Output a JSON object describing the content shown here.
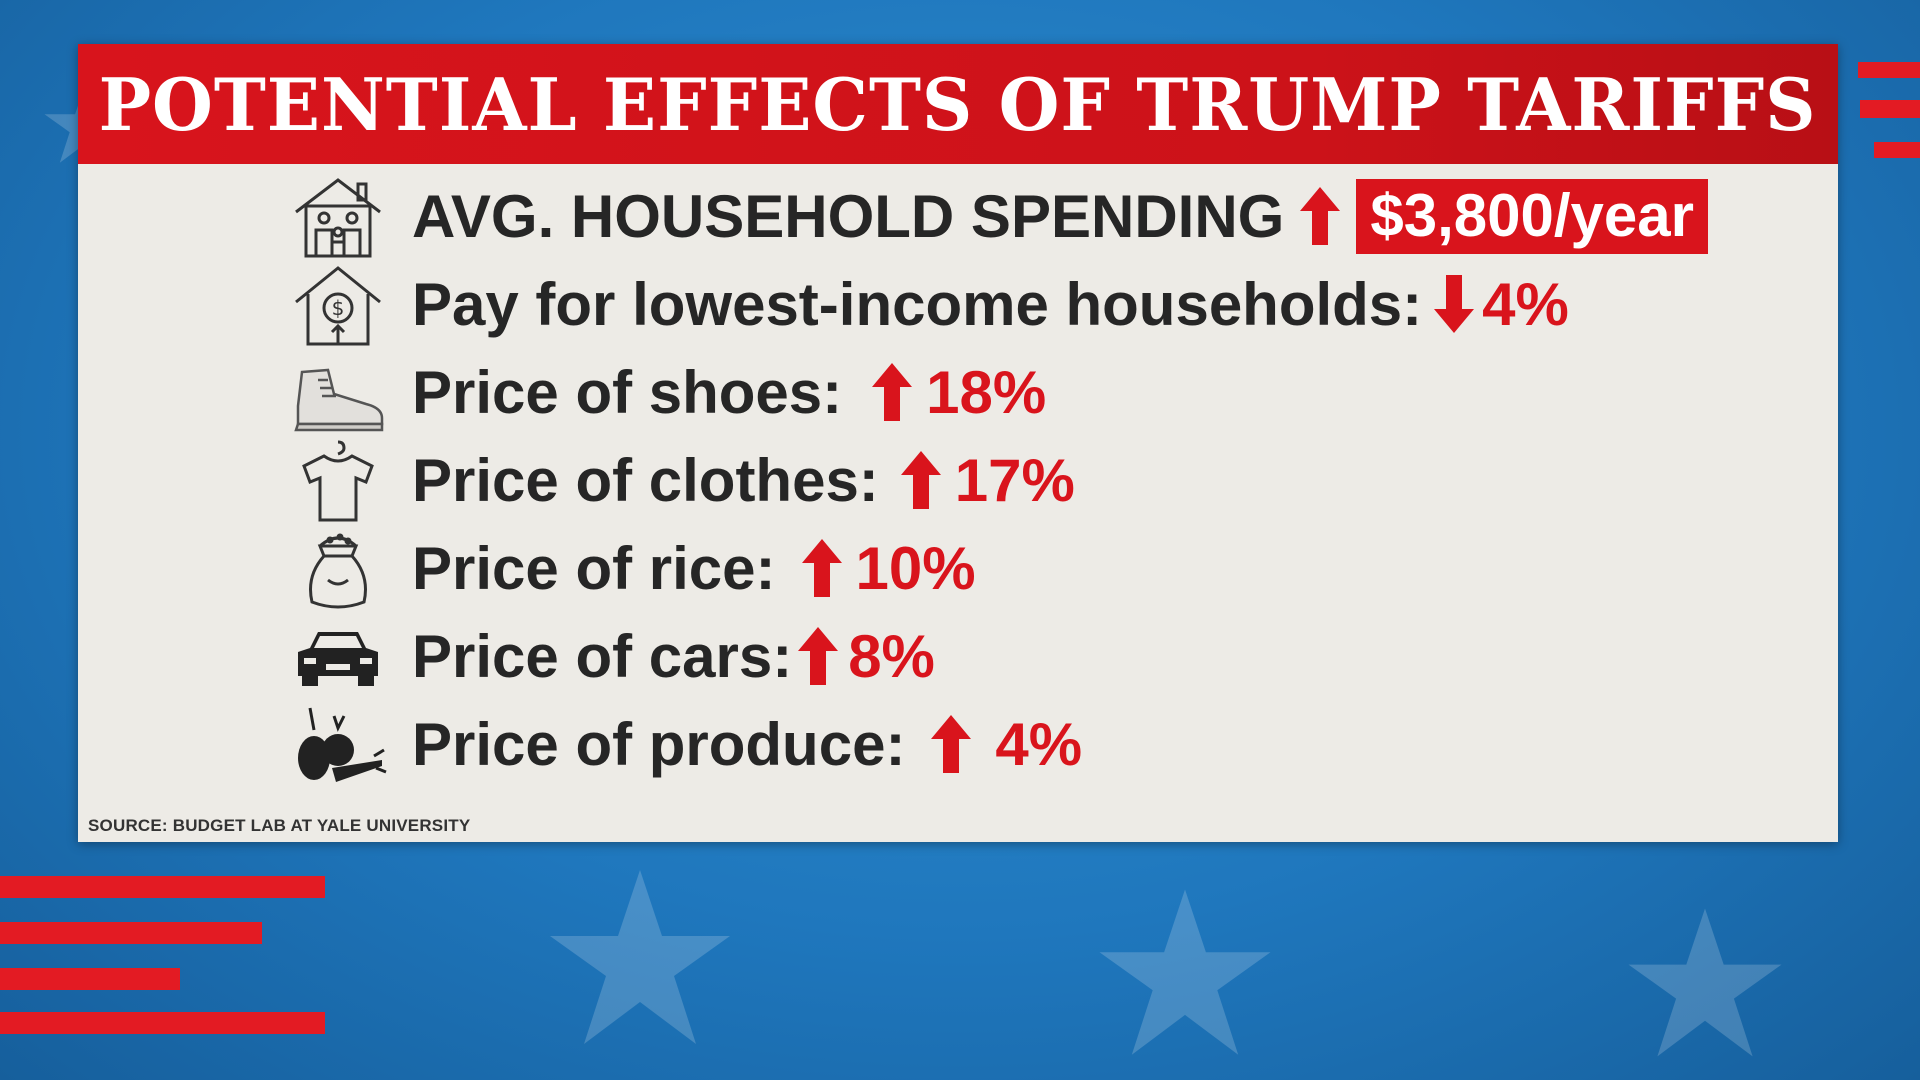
{
  "title": "POTENTIAL EFFECTS OF TRUMP TARIFFS",
  "rows": [
    {
      "icon": "family-house-icon",
      "label": "AVG. HOUSEHOLD SPENDING",
      "direction": "up",
      "value": "$3,800/year",
      "highlight": true
    },
    {
      "icon": "house-money-icon",
      "label": "Pay for lowest-income households:",
      "direction": "down",
      "value": "4%",
      "highlight": false
    },
    {
      "icon": "shoe-icon",
      "label": "Price of shoes:",
      "direction": "up",
      "value": "18%",
      "highlight": false
    },
    {
      "icon": "tshirt-icon",
      "label": "Price of clothes:",
      "direction": "up",
      "value": "17%",
      "highlight": false
    },
    {
      "icon": "rice-bag-icon",
      "label": "Price of rice:",
      "direction": "up",
      "value": "10%",
      "highlight": false
    },
    {
      "icon": "car-icon",
      "label": "Price of cars:",
      "direction": "up",
      "value": "8%",
      "highlight": false
    },
    {
      "icon": "produce-icon",
      "label": "Price of produce:",
      "direction": "up",
      "value": "4%",
      "highlight": false
    }
  ],
  "source": "SOURCE: BUDGET LAB AT YALE UNIVERSITY",
  "colors": {
    "accent": "#d9141c",
    "panel": "#edebe6",
    "background": "#1f77bd",
    "text": "#262626"
  }
}
